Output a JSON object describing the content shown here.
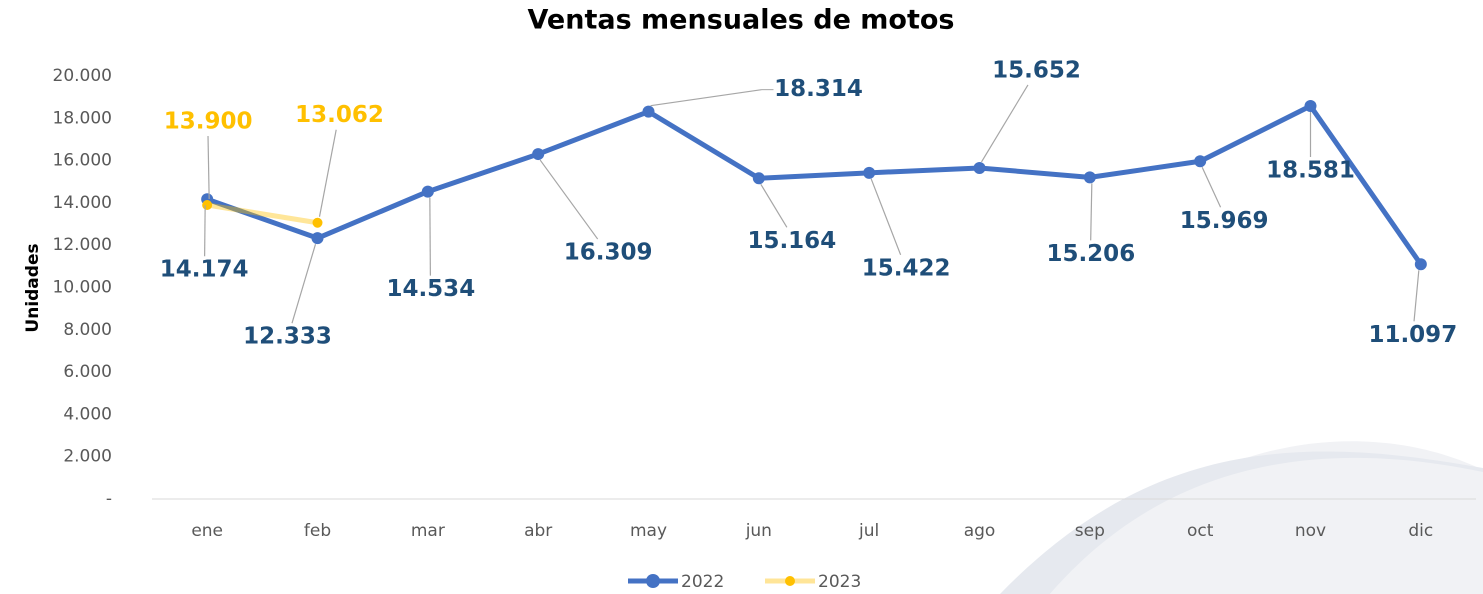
{
  "chart_data": {
    "type": "line",
    "title": "Ventas mensuales de motos",
    "y_label": "Unidades",
    "categories": [
      "ene",
      "feb",
      "mar",
      "abr",
      "may",
      "jun",
      "jul",
      "ago",
      "sep",
      "oct",
      "nov",
      "dic"
    ],
    "series": [
      {
        "name": "2022",
        "color": "#4472c4",
        "label_color": "#1f4e79",
        "values": [
          14174,
          12333,
          14534,
          16309,
          18314,
          15164,
          15422,
          15652,
          15206,
          15969,
          18581,
          11097
        ],
        "value_labels": [
          "14.174",
          "12.333",
          "14.534",
          "16.309",
          "18.314",
          "15.164",
          "15.422",
          "15.652",
          "15.206",
          "15.969",
          "18.581",
          "11.097"
        ]
      },
      {
        "name": "2023",
        "color": "#ffc000",
        "label_color": "#ffc000",
        "values": [
          13900,
          13062,
          null,
          null,
          null,
          null,
          null,
          null,
          null,
          null,
          null,
          null
        ],
        "value_labels": [
          "13.900",
          "13.062",
          null,
          null,
          null,
          null,
          null,
          null,
          null,
          null,
          null,
          null
        ]
      }
    ],
    "ylim": [
      0,
      20000
    ],
    "yticks": [
      {
        "value": 0,
        "label": "-"
      },
      {
        "value": 2000,
        "label": "2.000"
      },
      {
        "value": 4000,
        "label": "4.000"
      },
      {
        "value": 6000,
        "label": "6.000"
      },
      {
        "value": 8000,
        "label": "8.000"
      },
      {
        "value": 10000,
        "label": "10.000"
      },
      {
        "value": 12000,
        "label": "12.000"
      },
      {
        "value": 14000,
        "label": "14.000"
      },
      {
        "value": 16000,
        "label": "16.000"
      },
      {
        "value": 18000,
        "label": "18.000"
      },
      {
        "value": 20000,
        "label": "20.000"
      }
    ],
    "grid": false,
    "legend": "bottom"
  }
}
